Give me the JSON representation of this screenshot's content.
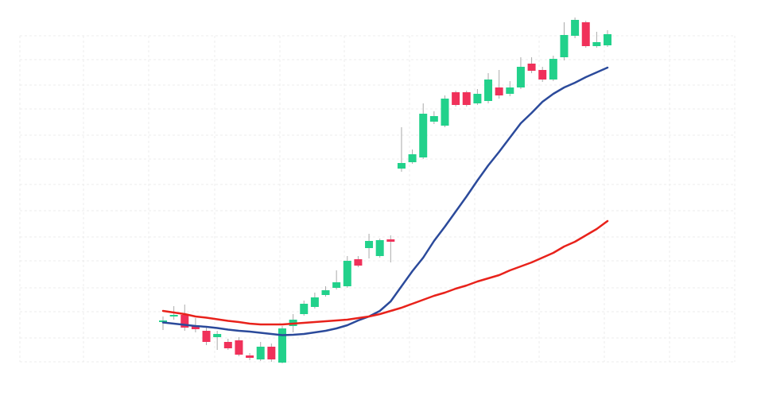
{
  "chart_data": {
    "type": "candlestick",
    "categories": [
      null,
      null,
      null,
      null,
      null,
      null,
      null,
      null,
      null,
      null,
      null,
      null,
      null,
      null,
      null,
      null,
      null,
      null,
      null,
      null,
      null,
      null,
      null,
      null,
      null,
      null,
      null,
      null,
      null,
      null,
      null,
      null,
      null,
      null,
      null,
      null,
      null,
      null,
      null,
      null,
      null,
      null
    ],
    "open": [
      55,
      62,
      64,
      50,
      44,
      36,
      30,
      32,
      13,
      8,
      24,
      4,
      50,
      65,
      74,
      89,
      98,
      100,
      134,
      148,
      138,
      159,
      248,
      256,
      262,
      307,
      302,
      344,
      344,
      330,
      333,
      350,
      342,
      350,
      380,
      372,
      360,
      388,
      415,
      432,
      402,
      403
    ],
    "high": [
      62,
      75,
      77,
      60,
      48,
      44,
      34,
      36,
      16,
      30,
      28,
      50,
      65,
      82,
      92,
      100,
      120,
      138,
      138,
      166,
      160,
      164,
      300,
      272,
      330,
      320,
      340,
      346,
      346,
      348,
      368,
      372,
      358,
      388,
      388,
      376,
      390,
      432,
      438,
      434,
      420,
      422
    ],
    "low": [
      45,
      58,
      44,
      42,
      26,
      20,
      20,
      12,
      7,
      6,
      5,
      3,
      42,
      63,
      72,
      87,
      96,
      98,
      124,
      135,
      136,
      130,
      244,
      254,
      260,
      304,
      300,
      326,
      326,
      328,
      330,
      336,
      339,
      348,
      368,
      357,
      358,
      384,
      412,
      400,
      400,
      401
    ],
    "close": [
      57,
      64,
      48,
      46,
      30,
      40,
      22,
      14,
      10,
      24,
      8,
      47,
      58,
      78,
      86,
      95,
      105,
      132,
      126,
      157,
      158,
      156,
      255,
      266,
      317,
      314,
      336,
      328,
      328,
      342,
      360,
      340,
      350,
      376,
      371,
      360,
      386,
      416,
      435,
      402,
      407,
      417
    ],
    "up_color": "#22d18b",
    "down_color": "#f0315a",
    "series": [
      {
        "color": "#2b4a9b",
        "values": [
          54.5,
          53,
          51.5,
          50,
          49,
          47.5,
          45.5,
          44,
          43,
          41.5,
          40,
          38.5,
          39,
          40,
          42,
          44,
          47,
          51,
          57,
          62,
          69,
          81,
          100,
          119,
          136,
          157,
          175,
          194,
          213,
          233,
          252,
          269,
          287,
          305,
          318,
          332,
          342,
          350,
          356,
          363,
          369,
          375
        ]
      },
      {
        "color": "#e8221b",
        "values": [
          69,
          67,
          65,
          62,
          60.5,
          58.5,
          56.5,
          55,
          53,
          52,
          52,
          52,
          53,
          54,
          55,
          56,
          57,
          58,
          60,
          62,
          65,
          69,
          73,
          78,
          83,
          88,
          92,
          97,
          101,
          106,
          110,
          114,
          120,
          125,
          130,
          136,
          142,
          150,
          156,
          164,
          172,
          182
        ]
      }
    ],
    "ylim": [
      0,
      440
    ],
    "grid": true
  }
}
